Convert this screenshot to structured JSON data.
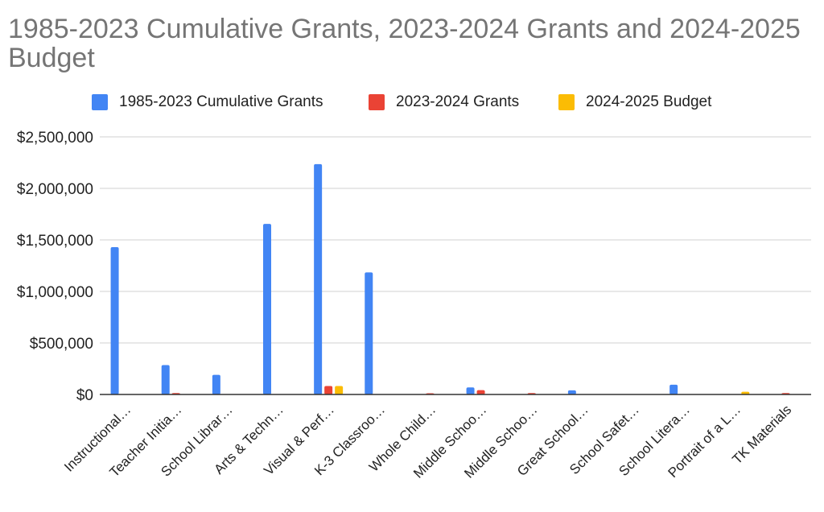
{
  "chart_data": {
    "type": "bar",
    "title": "1985-2023 Cumulative Grants, 2023-2024 Grants and 2024-2025 Budget",
    "xlabel": "",
    "ylabel": "",
    "ylim": [
      0,
      2500000
    ],
    "yticks": [
      "$0",
      "$500,000",
      "$1,000,000",
      "$1,500,000",
      "$2,000,000",
      "$2,500,000"
    ],
    "ytick_values": [
      0,
      500000,
      1000000,
      1500000,
      2000000,
      2500000
    ],
    "grid": true,
    "legend_position": "top",
    "categories": [
      "Instructional…",
      "Teacher Initia…",
      "School Librar…",
      "Arts & Techn…",
      "Visual & Perf…",
      "K-3 Classroo…",
      "Whole Child…",
      "Middle Schoo…",
      "Middle Schoo…",
      "Great School…",
      "School Safet…",
      "School Litera…",
      "Portrait of a L…",
      "TK Materials"
    ],
    "series": [
      {
        "name": "1985-2023 Cumulative Grants",
        "color": "#4285f4",
        "values": [
          1430000,
          285000,
          190000,
          1655000,
          2235000,
          1185000,
          0,
          68000,
          0,
          40000,
          0,
          95000,
          0,
          0
        ]
      },
      {
        "name": "2023-2024 Grants",
        "color": "#ea4335",
        "values": [
          0,
          14000,
          0,
          0,
          82000,
          0,
          12000,
          42000,
          14000,
          0,
          0,
          0,
          0,
          14000
        ]
      },
      {
        "name": "2024-2025 Budget",
        "color": "#fbbc04",
        "values": [
          0,
          0,
          0,
          0,
          82000,
          0,
          0,
          0,
          0,
          0,
          0,
          0,
          26000,
          0
        ]
      }
    ]
  }
}
